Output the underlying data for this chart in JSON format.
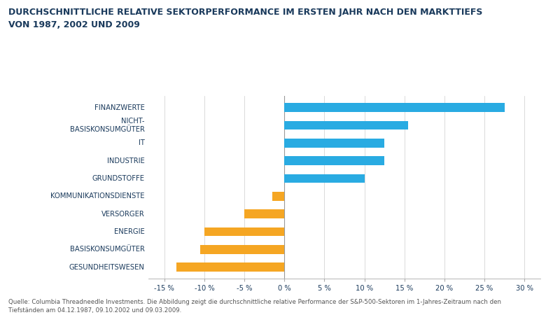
{
  "title": "DURCHSCHNITTLICHE RELATIVE SEKTORPERFORMANCE IM ERSTEN JAHR NACH DEN MARKTTIEFS\nVON 1987, 2002 UND 2009",
  "categories": [
    "FINANZWERTE",
    "NICHT-\nBASISKONSUMGÜTER",
    "IT",
    "INDUSTRIE",
    "GRUNDSTOFFE",
    "KOMMUNIKATIONSDIENSTE",
    "VERSORGER",
    "ENERGIE",
    "BASISKONSUMGÜTER",
    "GESUNDHEITSWESEN"
  ],
  "values": [
    27.5,
    15.5,
    12.5,
    12.5,
    10.0,
    -1.5,
    -5.0,
    -10.0,
    -10.5,
    -13.5
  ],
  "colors": [
    "#29ABE2",
    "#29ABE2",
    "#29ABE2",
    "#29ABE2",
    "#29ABE2",
    "#F5A623",
    "#F5A623",
    "#F5A623",
    "#F5A623",
    "#F5A623"
  ],
  "xlim": [
    -17,
    32
  ],
  "xticks": [
    -15,
    -10,
    -5,
    0,
    5,
    10,
    15,
    20,
    25,
    30
  ],
  "xtick_labels": [
    "-15 %",
    "-10 %",
    "-5 %",
    "0 %",
    "5 %",
    "10 %",
    "15 %",
    "20 %",
    "25 %",
    "30 %"
  ],
  "footnote": "Quelle: Columbia Threadneedle Investments. Die Abbildung zeigt die durchschnittliche relative Performance der S&P-500-Sektoren im 1-Jahres-Zeitraum nach den\nTiefständen am 04.12.1987, 09.10.2002 und 09.03.2009.",
  "bg_color": "#FFFFFF",
  "title_color": "#1A3A5C",
  "label_color": "#1A3A5C",
  "axis_color": "#AAAAAA",
  "footnote_color": "#555555",
  "title_fontsize": 9.0,
  "label_fontsize": 7.2,
  "tick_fontsize": 7.2,
  "footnote_fontsize": 6.2,
  "bar_height": 0.5
}
